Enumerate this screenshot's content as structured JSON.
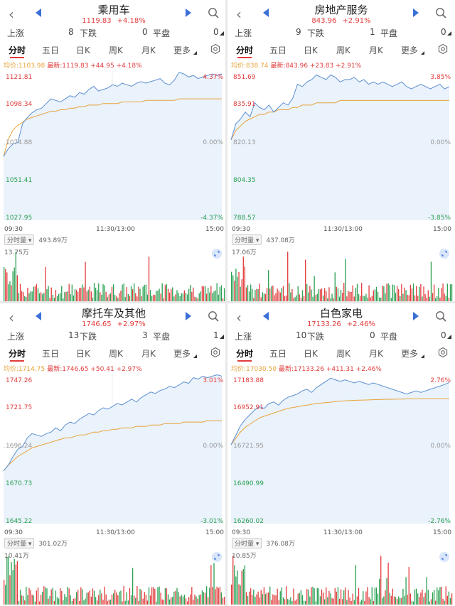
{
  "panels": [
    {
      "title": "乘用车",
      "price": "1119.83",
      "change_pct": "+4.18%",
      "stats": {
        "up_label": "上涨",
        "up": "8",
        "down_label": "下跌",
        "down": "0",
        "flat_label": "平盘",
        "flat": "0"
      },
      "tabs": [
        "分时",
        "五日",
        "日K",
        "周K",
        "月K",
        "更多"
      ],
      "avg_label": "均价:1103.98",
      "last_label": "最新:1119.83 +44.95 +4.18%",
      "yticks_left": [
        "1121.81",
        "1098.34",
        "1074.88",
        "1051.41",
        "1027.95"
      ],
      "yticks_right": [
        "4.37%",
        "0.00%",
        "-4.37%"
      ],
      "xticks": [
        "09:30",
        "11:30/13:00",
        "15:00"
      ],
      "volume_tag": "分时量",
      "volume_total": "493.89万",
      "volume_max": "13.75万",
      "chart_data": {
        "type": "line",
        "ylim": [
          1027.95,
          1121.81
        ],
        "baseline": 1074.88,
        "series": [
          {
            "name": "price",
            "values": [
              1067,
              1072,
              1075,
              1076,
              1088,
              1092,
              1095,
              1097,
              1098,
              1101,
              1104,
              1103,
              1102,
              1104,
              1106,
              1105,
              1108,
              1107,
              1110,
              1112,
              1109,
              1110,
              1111,
              1113,
              1112,
              1114,
              1113,
              1112,
              1114,
              1115,
              1114,
              1115,
              1116,
              1117,
              1114,
              1113,
              1116,
              1121,
              1120,
              1118,
              1119,
              1117,
              1118,
              1119,
              1120,
              1119,
              1120
            ]
          },
          {
            "name": "avg",
            "values": [
              1067,
              1078,
              1084,
              1087,
              1089,
              1091,
              1092,
              1093,
              1094,
              1095,
              1096,
              1096,
              1097,
              1097,
              1098,
              1098,
              1099,
              1099,
              1100,
              1100,
              1100,
              1101,
              1101,
              1101,
              1101,
              1102,
              1102,
              1102,
              1102,
              1102,
              1103,
              1103,
              1103,
              1103,
              1103,
              1103,
              1103,
              1104,
              1104,
              1104,
              1104,
              1104,
              1104,
              1104,
              1104,
              1104,
              1104
            ]
          }
        ]
      }
    },
    {
      "title": "房地产服务",
      "price": "843.96",
      "change_pct": "+2.91%",
      "stats": {
        "up_label": "上涨",
        "up": "9",
        "down_label": "下跌",
        "down": "1",
        "flat_label": "平盘",
        "flat": "0"
      },
      "tabs": [
        "分时",
        "五日",
        "日K",
        "周K",
        "月K",
        "更多"
      ],
      "avg_label": "均价:838.74",
      "last_label": "最新:843.96 +23.83 +2.91%",
      "yticks_left": [
        "851.69",
        "835.91",
        "820.13",
        "804.35",
        "788.57"
      ],
      "yticks_right": [
        "3.85%",
        "0.00%",
        "-3.85%"
      ],
      "xticks": [
        "09:30",
        "11:30/13:00",
        "15:00"
      ],
      "volume_tag": "分时量",
      "volume_total": "437.08万",
      "volume_max": "17.06万",
      "chart_data": {
        "type": "line",
        "ylim": [
          788.57,
          851.69
        ],
        "baseline": 820.13,
        "series": [
          {
            "name": "price",
            "values": [
              822,
              829,
              831,
              834,
              832,
              838,
              836,
              835,
              837,
              834,
              836,
              838,
              837,
              840,
              846,
              845,
              847,
              848,
              850,
              849,
              848,
              850,
              849,
              847,
              848,
              848,
              849,
              847,
              848,
              846,
              847,
              846,
              847,
              846,
              845,
              846,
              847,
              845,
              844,
              845,
              846,
              845,
              844,
              845,
              846,
              844,
              845
            ]
          },
          {
            "name": "avg",
            "values": [
              822,
              826,
              828,
              830,
              831,
              832,
              833,
              833,
              834,
              834,
              835,
              835,
              835,
              836,
              836,
              837,
              837,
              837,
              838,
              838,
              838,
              838,
              838,
              839,
              839,
              839,
              839,
              839,
              839,
              839,
              839,
              839,
              839,
              839,
              839,
              839,
              839,
              839,
              839,
              839,
              839,
              839,
              839,
              839,
              839,
              839,
              839
            ]
          }
        ]
      }
    },
    {
      "title": "摩托车及其他",
      "price": "1746.65",
      "change_pct": "+2.97%",
      "stats": {
        "up_label": "上涨",
        "up": "13",
        "down_label": "下跌",
        "down": "3",
        "flat_label": "平盘",
        "flat": "1"
      },
      "tabs": [
        "分时",
        "五日",
        "日K",
        "周K",
        "月K",
        "更多"
      ],
      "avg_label": "均价:1714.75",
      "last_label": "最新:1746.65 +50.41 +2.97%",
      "yticks_left": [
        "1747.26",
        "1721.75",
        "1696.24",
        "1670.73",
        "1645.22"
      ],
      "yticks_right": [
        "3.01%",
        "0.00%",
        "-3.01%"
      ],
      "xticks": [
        "09:30",
        "11:30/13:00",
        "15:00"
      ],
      "volume_tag": "分时量",
      "volume_total": "301.02万",
      "volume_max": "10.41万",
      "chart_data": {
        "type": "line",
        "ylim": [
          1645.22,
          1747.26
        ],
        "baseline": 1696.24,
        "series": [
          {
            "name": "price",
            "values": [
              1680,
              1684,
              1690,
              1695,
              1697,
              1703,
              1706,
              1705,
              1704,
              1706,
              1707,
              1710,
              1708,
              1712,
              1714,
              1713,
              1716,
              1718,
              1720,
              1719,
              1722,
              1724,
              1723,
              1725,
              1727,
              1726,
              1728,
              1730,
              1728,
              1731,
              1733,
              1735,
              1734,
              1736,
              1737,
              1739,
              1738,
              1740,
              1742,
              1741,
              1745,
              1744,
              1746,
              1745,
              1746,
              1747,
              1746
            ]
          },
          {
            "name": "avg",
            "values": [
              1680,
              1684,
              1687,
              1690,
              1692,
              1694,
              1696,
              1697,
              1698,
              1699,
              1700,
              1701,
              1702,
              1703,
              1703,
              1704,
              1705,
              1705,
              1706,
              1707,
              1707,
              1708,
              1708,
              1709,
              1709,
              1710,
              1710,
              1710,
              1711,
              1711,
              1711,
              1712,
              1712,
              1712,
              1713,
              1713,
              1713,
              1713,
              1714,
              1714,
              1714,
              1714,
              1714,
              1715,
              1715,
              1715,
              1715
            ]
          }
        ]
      }
    },
    {
      "title": "白色家电",
      "price": "17133.26",
      "change_pct": "+2.46%",
      "stats": {
        "up_label": "上涨",
        "up": "10",
        "down_label": "下跌",
        "down": "0",
        "flat_label": "平盘",
        "flat": "0"
      },
      "tabs": [
        "分时",
        "五日",
        "日K",
        "周K",
        "月K",
        "更多"
      ],
      "avg_label": "均价:17030.50",
      "last_label": "最新:17133.26 +411.31 +2.46%",
      "yticks_left": [
        "17183.88",
        "16952.91",
        "16721.95",
        "16490.99",
        "16260.02"
      ],
      "yticks_right": [
        "2.76%",
        "0.00%",
        "-2.76%"
      ],
      "xticks": [
        "09:30",
        "11:30/13:00",
        "15:00"
      ],
      "volume_tag": "分时量",
      "volume_total": "376.08万",
      "volume_max": "10.85万",
      "chart_data": {
        "type": "line",
        "ylim": [
          16260.02,
          17183.88
        ],
        "baseline": 16721.95,
        "series": [
          {
            "name": "price",
            "values": [
              16740,
              16800,
              16860,
              16900,
              16930,
              16960,
              16980,
              16970,
              17000,
              17010,
              16990,
              17020,
              17040,
              17050,
              17060,
              17080,
              17090,
              17070,
              17100,
              17120,
              17140,
              17160,
              17150,
              17140,
              17150,
              17140,
              17130,
              17140,
              17130,
              17120,
              17130,
              17120,
              17110,
              17100,
              17090,
              17080,
              17070,
              17060,
              17070,
              17080,
              17070,
              17080,
              17090,
              17100,
              17110,
              17120,
              17133
            ]
          },
          {
            "name": "avg",
            "values": [
              16740,
              16780,
              16820,
              16850,
              16870,
              16890,
              16910,
              16920,
              16930,
              16940,
              16950,
              16960,
              16970,
              16975,
              16980,
              16985,
              16990,
              16995,
              17000,
              17003,
              17006,
              17009,
              17012,
              17015,
              17017,
              17019,
              17020,
              17021,
              17022,
              17023,
              17024,
              17025,
              17026,
              17027,
              17027,
              17028,
              17028,
              17029,
              17029,
              17029,
              17030,
              17030,
              17030,
              17030,
              17030,
              17030,
              17030
            ]
          }
        ]
      }
    }
  ],
  "colors": {
    "up": "#e23b3b",
    "down": "#2aa052",
    "price_line": "#5b8fd0",
    "avg_line": "#e8a33a",
    "fill": "#eaf2fc",
    "accent": "#3a6fd6"
  },
  "icons": {
    "back": "chevron-left-icon",
    "prev": "triangle-left-icon",
    "next": "triangle-right-icon",
    "search": "search-icon",
    "settings": "gear-icon",
    "zoom": "zoom-icon"
  }
}
